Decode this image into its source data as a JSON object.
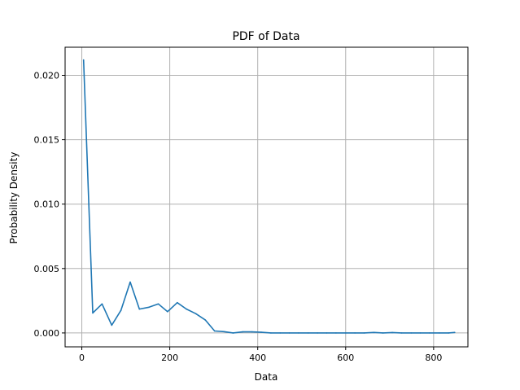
{
  "chart_data": {
    "type": "line",
    "title": "PDF of Data",
    "xlabel": "Data",
    "ylabel": "Probability Density",
    "xlim": [
      -38,
      878
    ],
    "ylim": [
      -0.00108,
      0.02218
    ],
    "grid": true,
    "x_ticks": [
      0,
      200,
      400,
      600,
      800
    ],
    "x_tick_labels": [
      "0",
      "200",
      "400",
      "600",
      "800"
    ],
    "y_ticks": [
      0.0,
      0.005,
      0.01,
      0.015,
      0.02
    ],
    "y_tick_labels": [
      "0.000",
      "0.005",
      "0.010",
      "0.015",
      "0.020"
    ],
    "series": [
      {
        "color": "#1f77b4",
        "x": [
          4,
          25,
          46,
          68,
          89,
          110,
          131,
          153,
          174,
          195,
          217,
          238,
          259,
          281,
          302,
          323,
          344,
          366,
          387,
          408,
          430,
          451,
          472,
          493,
          515,
          536,
          557,
          578,
          600,
          621,
          642,
          664,
          685,
          706,
          727,
          749,
          770,
          791,
          813,
          834,
          848
        ],
        "values": [
          0.0212,
          0.00155,
          0.00225,
          0.0006,
          0.00175,
          0.00395,
          0.00185,
          0.002,
          0.00225,
          0.00165,
          0.00235,
          0.00185,
          0.0015,
          0.001,
          0.00015,
          0.0001,
          0.0,
          8e-05,
          8e-05,
          5e-05,
          0.0,
          0.0,
          0.0,
          0.0,
          0.0,
          0.0,
          0.0,
          0.0,
          0.0,
          0.0,
          0.0,
          4e-05,
          0.0,
          3e-05,
          0.0,
          0.0,
          0.0,
          0.0,
          0.0,
          0.0,
          4e-05
        ]
      }
    ]
  }
}
